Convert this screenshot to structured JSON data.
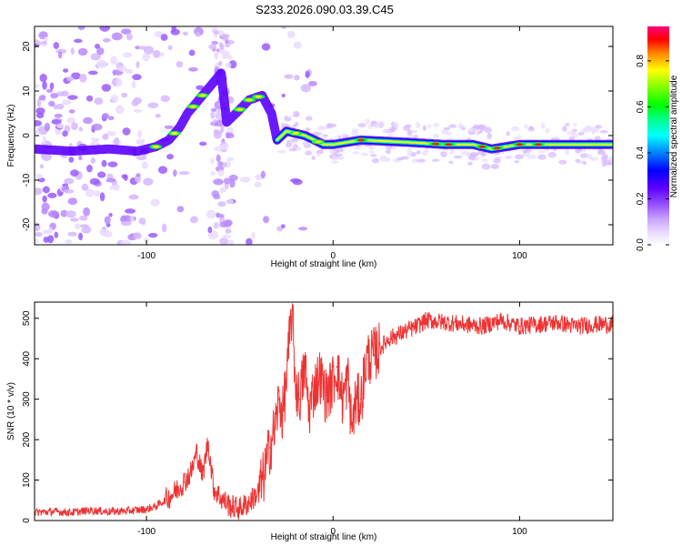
{
  "figure_title": "S233.2026.090.03.39.C45",
  "chart_data": [
    {
      "type": "heatmap",
      "title": "S233.2026.090.03.39.C45",
      "xlabel": "Height of straight line (km)",
      "ylabel": "Frequency (Hz)",
      "xlim": [
        -160,
        150
      ],
      "ylim": [
        -24.5,
        24.5
      ],
      "xticks": [
        -100,
        0,
        100
      ],
      "yticks": [
        -20,
        -10,
        0,
        10,
        20
      ],
      "grid": false,
      "colorbar": {
        "label": "Normalized spectral amplitude",
        "range": [
          0,
          0.95
        ],
        "ticks": [
          0.0,
          0.2,
          0.4,
          0.6,
          0.8
        ],
        "colormap": [
          "#ffffff",
          "#e8d8ff",
          "#c8a0ff",
          "#9955ff",
          "#5b00ff",
          "#0000ff",
          "#0080ff",
          "#00ffff",
          "#00ff80",
          "#00ff00",
          "#80ff00",
          "#ffff00",
          "#ff8000",
          "#ff0000",
          "#ff0080"
        ]
      },
      "ridge": [
        {
          "x": -160,
          "f": -3.0
        },
        {
          "x": -140,
          "f": -3.5
        },
        {
          "x": -120,
          "f": -3.0
        },
        {
          "x": -105,
          "f": -3.5
        },
        {
          "x": -95,
          "f": -2.5
        },
        {
          "x": -88,
          "f": -1.0
        },
        {
          "x": -82,
          "f": 2.0
        },
        {
          "x": -78,
          "f": 5.0
        },
        {
          "x": -72,
          "f": 8.0
        },
        {
          "x": -68,
          "f": 10.0
        },
        {
          "x": -60,
          "f": 14.0
        },
        {
          "x": -57,
          "f": 3.0
        },
        {
          "x": -52,
          "f": 5.0
        },
        {
          "x": -45,
          "f": 8.0
        },
        {
          "x": -38,
          "f": 9.0
        },
        {
          "x": -33,
          "f": 5.0
        },
        {
          "x": -30,
          "f": -1.0
        },
        {
          "x": -25,
          "f": 1.0
        },
        {
          "x": -15,
          "f": 0.0
        },
        {
          "x": -5,
          "f": -2.0
        },
        {
          "x": 0,
          "f": -2.0
        },
        {
          "x": 15,
          "f": -1.0
        },
        {
          "x": 40,
          "f": -1.5
        },
        {
          "x": 60,
          "f": -2.0
        },
        {
          "x": 75,
          "f": -2.0
        },
        {
          "x": 85,
          "f": -3.0
        },
        {
          "x": 100,
          "f": -2.0
        },
        {
          "x": 120,
          "f": -2.0
        },
        {
          "x": 150,
          "f": -2.0
        }
      ]
    },
    {
      "type": "line",
      "xlabel": "Height of straight line (km)",
      "ylabel": "SNR (10 * v/v)",
      "xlim": [
        -160,
        150
      ],
      "ylim": [
        0,
        540
      ],
      "xticks": [
        -100,
        0,
        100
      ],
      "yticks": [
        0,
        100,
        200,
        300,
        400,
        500
      ],
      "grid": false,
      "series": [
        {
          "name": "SNR",
          "color": "#ee3333",
          "x": [
            -160,
            -150,
            -140,
            -130,
            -120,
            -110,
            -100,
            -95,
            -90,
            -85,
            -80,
            -76,
            -73,
            -70,
            -67,
            -64,
            -60,
            -55,
            -50,
            -45,
            -40,
            -37,
            -34,
            -31,
            -29,
            -27,
            -25,
            -22,
            -20,
            -18,
            -15,
            -13,
            -10,
            -7,
            -4,
            -1,
            2,
            5,
            8,
            10,
            12,
            15,
            18,
            22,
            26,
            30,
            35,
            40,
            45,
            50,
            60,
            70,
            80,
            90,
            100,
            110,
            120,
            130,
            140,
            150
          ],
          "values": [
            20,
            22,
            20,
            25,
            22,
            24,
            28,
            35,
            50,
            70,
            95,
            120,
            170,
            110,
            195,
            80,
            55,
            35,
            30,
            45,
            70,
            110,
            180,
            230,
            300,
            260,
            350,
            520,
            330,
            300,
            380,
            270,
            330,
            360,
            310,
            330,
            380,
            300,
            350,
            230,
            290,
            300,
            400,
            410,
            430,
            450,
            460,
            470,
            480,
            495,
            490,
            485,
            480,
            495,
            480,
            485,
            490,
            480,
            485,
            485
          ]
        }
      ]
    }
  ]
}
